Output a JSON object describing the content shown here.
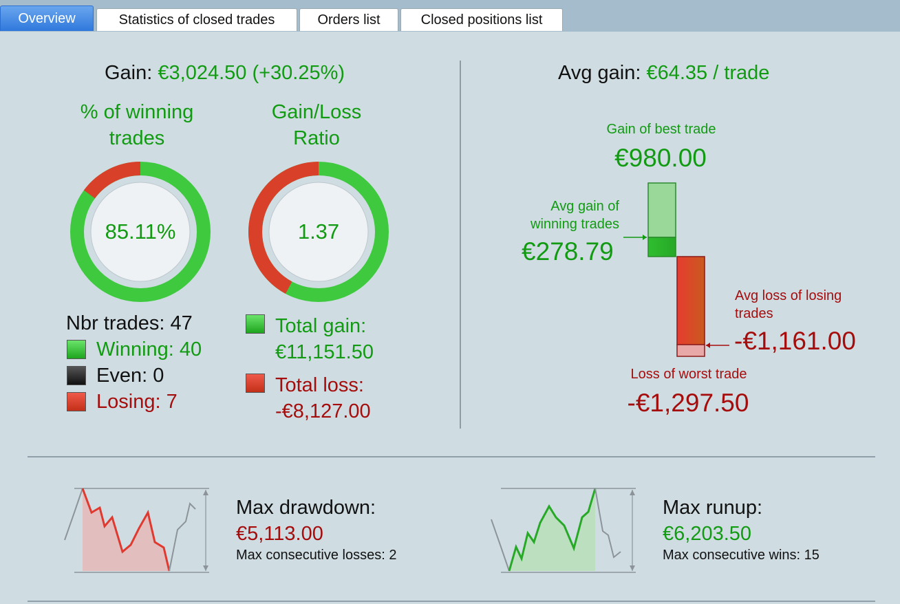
{
  "tabs": [
    {
      "label": "Overview",
      "active": true
    },
    {
      "label": "Statistics of closed trades",
      "active": false
    },
    {
      "label": "Orders list",
      "active": false
    },
    {
      "label": "Closed positions list",
      "active": false
    }
  ],
  "left": {
    "gain_label": "Gain:",
    "gain_value": "€3,024.50 (+30.25%)",
    "win_pct_title_line1": "% of winning",
    "win_pct_title_line2": "trades",
    "win_pct_value": "85.11%",
    "win_fraction": 0.8511,
    "ratio_title_line1": "Gain/Loss",
    "ratio_title_line2": "Ratio",
    "ratio_value": "1.37",
    "ratio_gain_fraction": 0.578,
    "nbr_trades_label": "Nbr trades: 47",
    "winning_label": "Winning: 40",
    "even_label": "Even: 0",
    "losing_label": "Losing: 7",
    "total_gain_label": "Total gain:",
    "total_gain_value": "€11,151.50",
    "total_loss_label": "Total loss:",
    "total_loss_value": "-€8,127.00"
  },
  "right": {
    "avg_gain_label": "Avg gain:",
    "avg_gain_value": "€64.35 / trade",
    "best_label": "Gain of best trade",
    "best_value": "€980.00",
    "avg_win_label_line1": "Avg gain of",
    "avg_win_label_line2": "winning trades",
    "avg_win_value": "€278.79",
    "avg_loss_label_line1": "Avg loss of losing",
    "avg_loss_label_line2": "trades",
    "avg_loss_value": "-€1,161.00",
    "worst_label": "Loss of worst trade",
    "worst_value": "-€1,297.50"
  },
  "drawdown": {
    "title": "Max drawdown:",
    "value": "€5,113.00",
    "sub": "Max consecutive losses: 2"
  },
  "runup": {
    "title": "Max runup:",
    "value": "€6,203.50",
    "sub": "Max consecutive wins: 15"
  },
  "colors": {
    "gain": "#129a12",
    "loss": "#a50d0d",
    "tab_active": "#2f78dc",
    "background": "#cfdde3"
  }
}
